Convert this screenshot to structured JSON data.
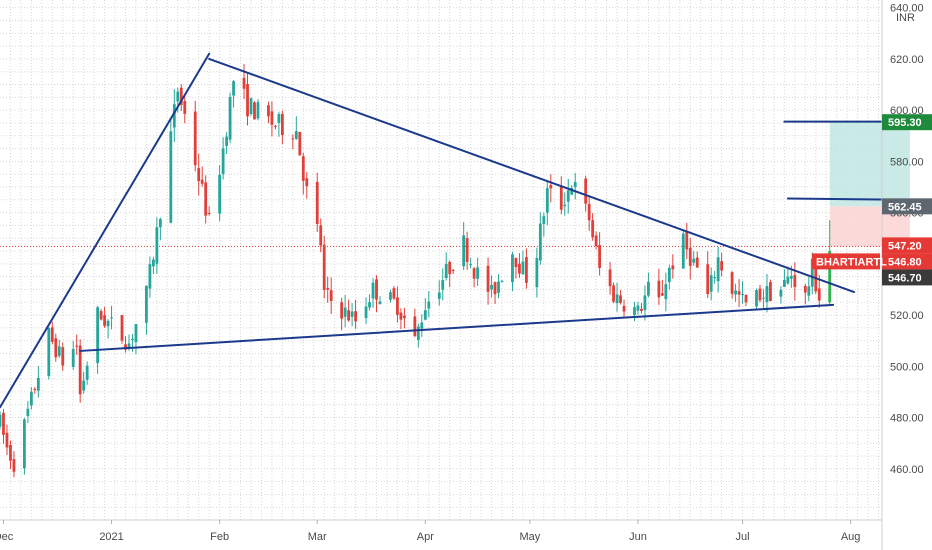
{
  "currency_label": "INR",
  "colors": {
    "up": "#26a69a",
    "up_strong": "#2fb14b",
    "down": "#e0403a",
    "trend_line": "#1c3a8c",
    "grid": "#d7d7d7",
    "last_price_line": "#e53935",
    "target_zone": "#bfe6e2",
    "stop_zone": "#fbd3d3"
  },
  "chart_data": {
    "type": "candlestick",
    "symbol": "BHARTIARTL",
    "x_axis": {
      "labels": [
        "Dec",
        "2021",
        "Feb",
        "Mar",
        "Apr",
        "May",
        "Jun",
        "Jul",
        "Aug"
      ],
      "start": "2020-11-30",
      "end": "2021-08-10"
    },
    "y_axis": {
      "range": [
        440,
        643
      ],
      "ticks": [
        460,
        480,
        500,
        520,
        540,
        560,
        580,
        600,
        620,
        640
      ],
      "tick_labels": [
        "460.00",
        "480.00",
        "500.00",
        "520.00",
        "540.00",
        "560.00",
        "580.00",
        "600.00",
        "620.00",
        "640.00"
      ]
    },
    "grid": true,
    "price_path": [
      [
        "2020-11-30",
        478
      ],
      [
        "2020-12-02",
        468
      ],
      [
        "2020-12-04",
        462
      ],
      [
        "2020-12-09",
        487
      ],
      [
        "2020-12-14",
        512
      ],
      [
        "2020-12-18",
        502
      ],
      [
        "2020-12-22",
        508
      ],
      [
        "2020-12-23",
        489
      ],
      [
        "2020-12-28",
        520
      ],
      [
        "2021-01-01",
        516
      ],
      [
        "2021-01-06",
        509
      ],
      [
        "2021-01-11",
        528
      ],
      [
        "2021-01-14",
        552
      ],
      [
        "2021-01-18",
        590
      ],
      [
        "2021-01-20",
        608
      ],
      [
        "2021-01-22",
        598
      ],
      [
        "2021-01-27",
        568
      ],
      [
        "2021-01-29",
        556
      ],
      [
        "2021-02-02",
        585
      ],
      [
        "2021-02-05",
        612
      ],
      [
        "2021-02-09",
        602
      ],
      [
        "2021-02-16",
        595
      ],
      [
        "2021-02-23",
        592
      ],
      [
        "2021-02-26",
        568
      ],
      [
        "2021-03-02",
        548
      ],
      [
        "2021-03-03",
        528
      ],
      [
        "2021-03-08",
        522
      ],
      [
        "2021-03-12",
        518
      ],
      [
        "2021-03-17",
        530
      ],
      [
        "2021-03-24",
        524
      ],
      [
        "2021-03-29",
        510
      ],
      [
        "2021-04-01",
        524
      ],
      [
        "2021-04-05",
        532
      ],
      [
        "2021-04-12",
        548
      ],
      [
        "2021-04-15",
        538
      ],
      [
        "2021-04-20",
        528
      ],
      [
        "2021-04-26",
        545
      ],
      [
        "2021-04-30",
        535
      ],
      [
        "2021-05-03",
        545
      ],
      [
        "2021-05-06",
        568
      ],
      [
        "2021-05-10",
        563
      ],
      [
        "2021-05-13",
        572
      ],
      [
        "2021-05-18",
        558
      ],
      [
        "2021-05-21",
        538
      ],
      [
        "2021-05-25",
        528
      ],
      [
        "2021-06-01",
        521
      ],
      [
        "2021-06-04",
        530
      ],
      [
        "2021-06-07",
        525
      ],
      [
        "2021-06-10",
        538
      ],
      [
        "2021-06-14",
        548
      ],
      [
        "2021-06-18",
        538
      ],
      [
        "2021-06-21",
        527
      ],
      [
        "2021-06-24",
        542
      ],
      [
        "2021-06-28",
        530
      ],
      [
        "2021-07-02",
        524
      ],
      [
        "2021-07-06",
        528
      ],
      [
        "2021-07-12",
        530
      ],
      [
        "2021-07-15",
        536
      ],
      [
        "2021-07-19",
        527
      ],
      [
        "2021-07-21",
        538
      ],
      [
        "2021-07-23",
        527
      ],
      [
        "2021-07-26",
        547
      ]
    ],
    "annotations": {
      "trend_lines": [
        {
          "from": [
            "2020-11-30",
            484
          ],
          "to": [
            "2021-01-29",
            622
          ]
        },
        {
          "from": [
            "2021-01-29",
            620
          ],
          "to": [
            "2021-08-02",
            529
          ]
        },
        {
          "from": [
            "2020-12-23",
            506
          ],
          "to": [
            "2021-07-27",
            524
          ]
        },
        {
          "from": [
            "2021-07-13",
            595.5
          ],
          "to": [
            "2021-08-18",
            595.5
          ]
        },
        {
          "from": [
            "2021-07-14",
            565.5
          ],
          "to": [
            "2021-08-16",
            565
          ]
        }
      ],
      "zones": [
        {
          "name": "target",
          "start": "2021-07-26",
          "end": "2021-08-18",
          "from": 562.45,
          "to": 595.3
        },
        {
          "name": "stop",
          "start": "2021-07-26",
          "end": "2021-08-18",
          "from": 546.7,
          "to": 562.45
        }
      ],
      "last_price_line": 546.8
    },
    "price_tags": [
      {
        "label": "595.30",
        "value": 595.3,
        "color": "#1e8a3c"
      },
      {
        "label": "562.45",
        "value": 562.45,
        "color": "#5e6670"
      },
      {
        "label": "547.20",
        "value": 547.2,
        "color": "#e53935"
      },
      {
        "label": "546.80",
        "value": 546.8,
        "color": "#e53935",
        "symbol": "BHARTIARTL"
      },
      {
        "label": "546.70",
        "value": 546.7,
        "color": "#3a3a3a"
      }
    ]
  }
}
